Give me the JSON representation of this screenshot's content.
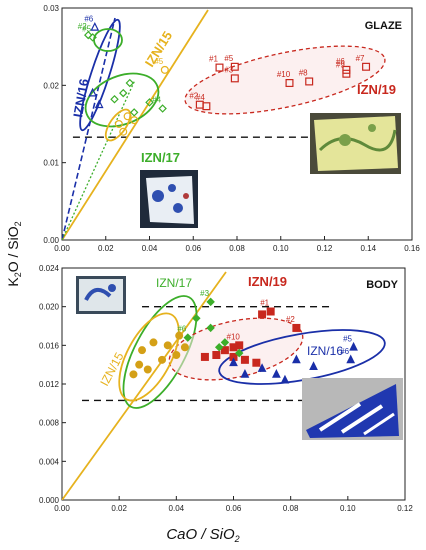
{
  "colors": {
    "izn15": "#e6b21e",
    "izn16": "#1a2fa8",
    "izn17": "#3cae2a",
    "izn19": "#c8281e",
    "izn19_fill": "#f7dcdc"
  },
  "axes": {
    "x_label": "CaO / SiO",
    "x_sub": "2",
    "y_label": "K",
    "y_sub1": "2",
    "y_mid": "O / SiO",
    "y_sub2": "2"
  },
  "chart_data": [
    {
      "type": "scatter",
      "title": "GLAZE",
      "xlim": [
        0,
        0.16
      ],
      "ylim": [
        0,
        0.03
      ],
      "x_ticks": [
        "0.00",
        "0.02",
        "0.04",
        "0.06",
        "0.08",
        "0.10",
        "0.12",
        "0.14",
        "0.16"
      ],
      "y_ticks": [
        "0.00",
        "0.01",
        "0.02",
        "0.03"
      ],
      "reference_y": 0.0133,
      "groups": [
        "IZN/16",
        "IZN/15",
        "IZN/17",
        "IZN/19"
      ],
      "series": [
        {
          "name": "IZN/19",
          "marker": "square-open",
          "color": "#c8281e",
          "points": [
            {
              "x": 0.072,
              "y": 0.0223,
              "label": "#1"
            },
            {
              "x": 0.063,
              "y": 0.0175,
              "label": "#2"
            },
            {
              "x": 0.079,
              "y": 0.0209,
              "label": "#3"
            },
            {
              "x": 0.066,
              "y": 0.0173,
              "label": "#4"
            },
            {
              "x": 0.079,
              "y": 0.0224,
              "label": "#5"
            },
            {
              "x": 0.13,
              "y": 0.022,
              "label": "#6"
            },
            {
              "x": 0.139,
              "y": 0.0224,
              "label": "#7"
            },
            {
              "x": 0.113,
              "y": 0.0205,
              "label": "#8"
            },
            {
              "x": 0.13,
              "y": 0.0215,
              "label": "#9"
            },
            {
              "x": 0.104,
              "y": 0.0203,
              "label": "#10"
            }
          ]
        },
        {
          "name": "IZN/16",
          "marker": "triangle-open",
          "color": "#1a2fa8",
          "points": [
            {
              "x": 0.015,
              "y": 0.0275,
              "label": "#6"
            },
            {
              "x": 0.014,
              "y": 0.019,
              "label": ""
            },
            {
              "x": 0.017,
              "y": 0.0175,
              "label": ""
            }
          ]
        },
        {
          "name": "IZN/17",
          "marker": "diamond-open",
          "color": "#3cae2a",
          "points": [
            {
              "x": 0.012,
              "y": 0.0265,
              "label": "#2"
            },
            {
              "x": 0.014,
              "y": 0.0262,
              "label": "#5"
            },
            {
              "x": 0.024,
              "y": 0.0182,
              "label": ""
            },
            {
              "x": 0.028,
              "y": 0.019,
              "label": ""
            },
            {
              "x": 0.031,
              "y": 0.0203,
              "label": ""
            },
            {
              "x": 0.04,
              "y": 0.0178,
              "label": ""
            },
            {
              "x": 0.046,
              "y": 0.017,
              "label": "#4"
            },
            {
              "x": 0.033,
              "y": 0.0165,
              "label": ""
            }
          ]
        },
        {
          "name": "IZN/15",
          "marker": "circle-open",
          "color": "#e6b21e",
          "points": [
            {
              "x": 0.026,
              "y": 0.015,
              "label": ""
            },
            {
              "x": 0.028,
              "y": 0.014,
              "label": ""
            },
            {
              "x": 0.03,
              "y": 0.016,
              "label": ""
            },
            {
              "x": 0.033,
              "y": 0.0155,
              "label": ""
            },
            {
              "x": 0.047,
              "y": 0.022,
              "label": "#5"
            }
          ]
        }
      ]
    },
    {
      "type": "scatter",
      "title": "BODY",
      "xlim": [
        0,
        0.12
      ],
      "ylim": [
        0,
        0.024
      ],
      "x_ticks": [
        "0.00",
        "0.02",
        "0.04",
        "0.06",
        "0.08",
        "0.10",
        "0.12"
      ],
      "y_ticks": [
        "0.000",
        "0.004",
        "0.008",
        "0.012",
        "0.016",
        "0.020",
        "0.024"
      ],
      "reference_y_top": 0.02,
      "reference_y_bottom": 0.0103,
      "groups": [
        "IZN/17",
        "IZN/19",
        "IZN/15",
        "IZN/16"
      ],
      "series": [
        {
          "name": "IZN/19",
          "marker": "square",
          "color": "#c8281e",
          "points": [
            {
              "x": 0.07,
              "y": 0.0192,
              "label": ""
            },
            {
              "x": 0.073,
              "y": 0.0195,
              "label": "#1"
            },
            {
              "x": 0.082,
              "y": 0.0178,
              "label": "#2"
            },
            {
              "x": 0.06,
              "y": 0.0158,
              "label": ""
            },
            {
              "x": 0.062,
              "y": 0.016,
              "label": "#10"
            },
            {
              "x": 0.054,
              "y": 0.015,
              "label": ""
            },
            {
              "x": 0.057,
              "y": 0.0155,
              "label": ""
            },
            {
              "x": 0.06,
              "y": 0.0148,
              "label": ""
            },
            {
              "x": 0.064,
              "y": 0.0145,
              "label": ""
            },
            {
              "x": 0.068,
              "y": 0.0142,
              "label": ""
            },
            {
              "x": 0.05,
              "y": 0.0148,
              "label": ""
            }
          ]
        },
        {
          "name": "IZN/16",
          "marker": "triangle",
          "color": "#1a2fa8",
          "points": [
            {
              "x": 0.06,
              "y": 0.0142,
              "label": ""
            },
            {
              "x": 0.064,
              "y": 0.013,
              "label": ""
            },
            {
              "x": 0.07,
              "y": 0.0136,
              "label": ""
            },
            {
              "x": 0.075,
              "y": 0.013,
              "label": ""
            },
            {
              "x": 0.078,
              "y": 0.0124,
              "label": ""
            },
            {
              "x": 0.082,
              "y": 0.0145,
              "label": ""
            },
            {
              "x": 0.088,
              "y": 0.0138,
              "label": ""
            },
            {
              "x": 0.102,
              "y": 0.0158,
              "label": "#5"
            },
            {
              "x": 0.101,
              "y": 0.0145,
              "label": "#6"
            }
          ]
        },
        {
          "name": "IZN/17",
          "marker": "diamond",
          "color": "#3cae2a",
          "points": [
            {
              "x": 0.052,
              "y": 0.0205,
              "label": "#3"
            },
            {
              "x": 0.044,
              "y": 0.0168,
              "label": "#6"
            },
            {
              "x": 0.052,
              "y": 0.0178,
              "label": ""
            },
            {
              "x": 0.055,
              "y": 0.0158,
              "label": ""
            },
            {
              "x": 0.057,
              "y": 0.0163,
              "label": ""
            },
            {
              "x": 0.062,
              "y": 0.0152,
              "label": ""
            },
            {
              "x": 0.047,
              "y": 0.0188,
              "label": ""
            }
          ]
        },
        {
          "name": "IZN/15",
          "marker": "circle",
          "color": "#d4a017",
          "points": [
            {
              "x": 0.025,
              "y": 0.013,
              "label": ""
            },
            {
              "x": 0.027,
              "y": 0.014,
              "label": ""
            },
            {
              "x": 0.028,
              "y": 0.0155,
              "label": ""
            },
            {
              "x": 0.03,
              "y": 0.0135,
              "label": ""
            },
            {
              "x": 0.032,
              "y": 0.0163,
              "label": ""
            },
            {
              "x": 0.035,
              "y": 0.0145,
              "label": ""
            },
            {
              "x": 0.037,
              "y": 0.016,
              "label": ""
            },
            {
              "x": 0.04,
              "y": 0.015,
              "label": ""
            },
            {
              "x": 0.041,
              "y": 0.017,
              "label": ""
            },
            {
              "x": 0.043,
              "y": 0.0158,
              "label": ""
            }
          ]
        }
      ]
    }
  ]
}
